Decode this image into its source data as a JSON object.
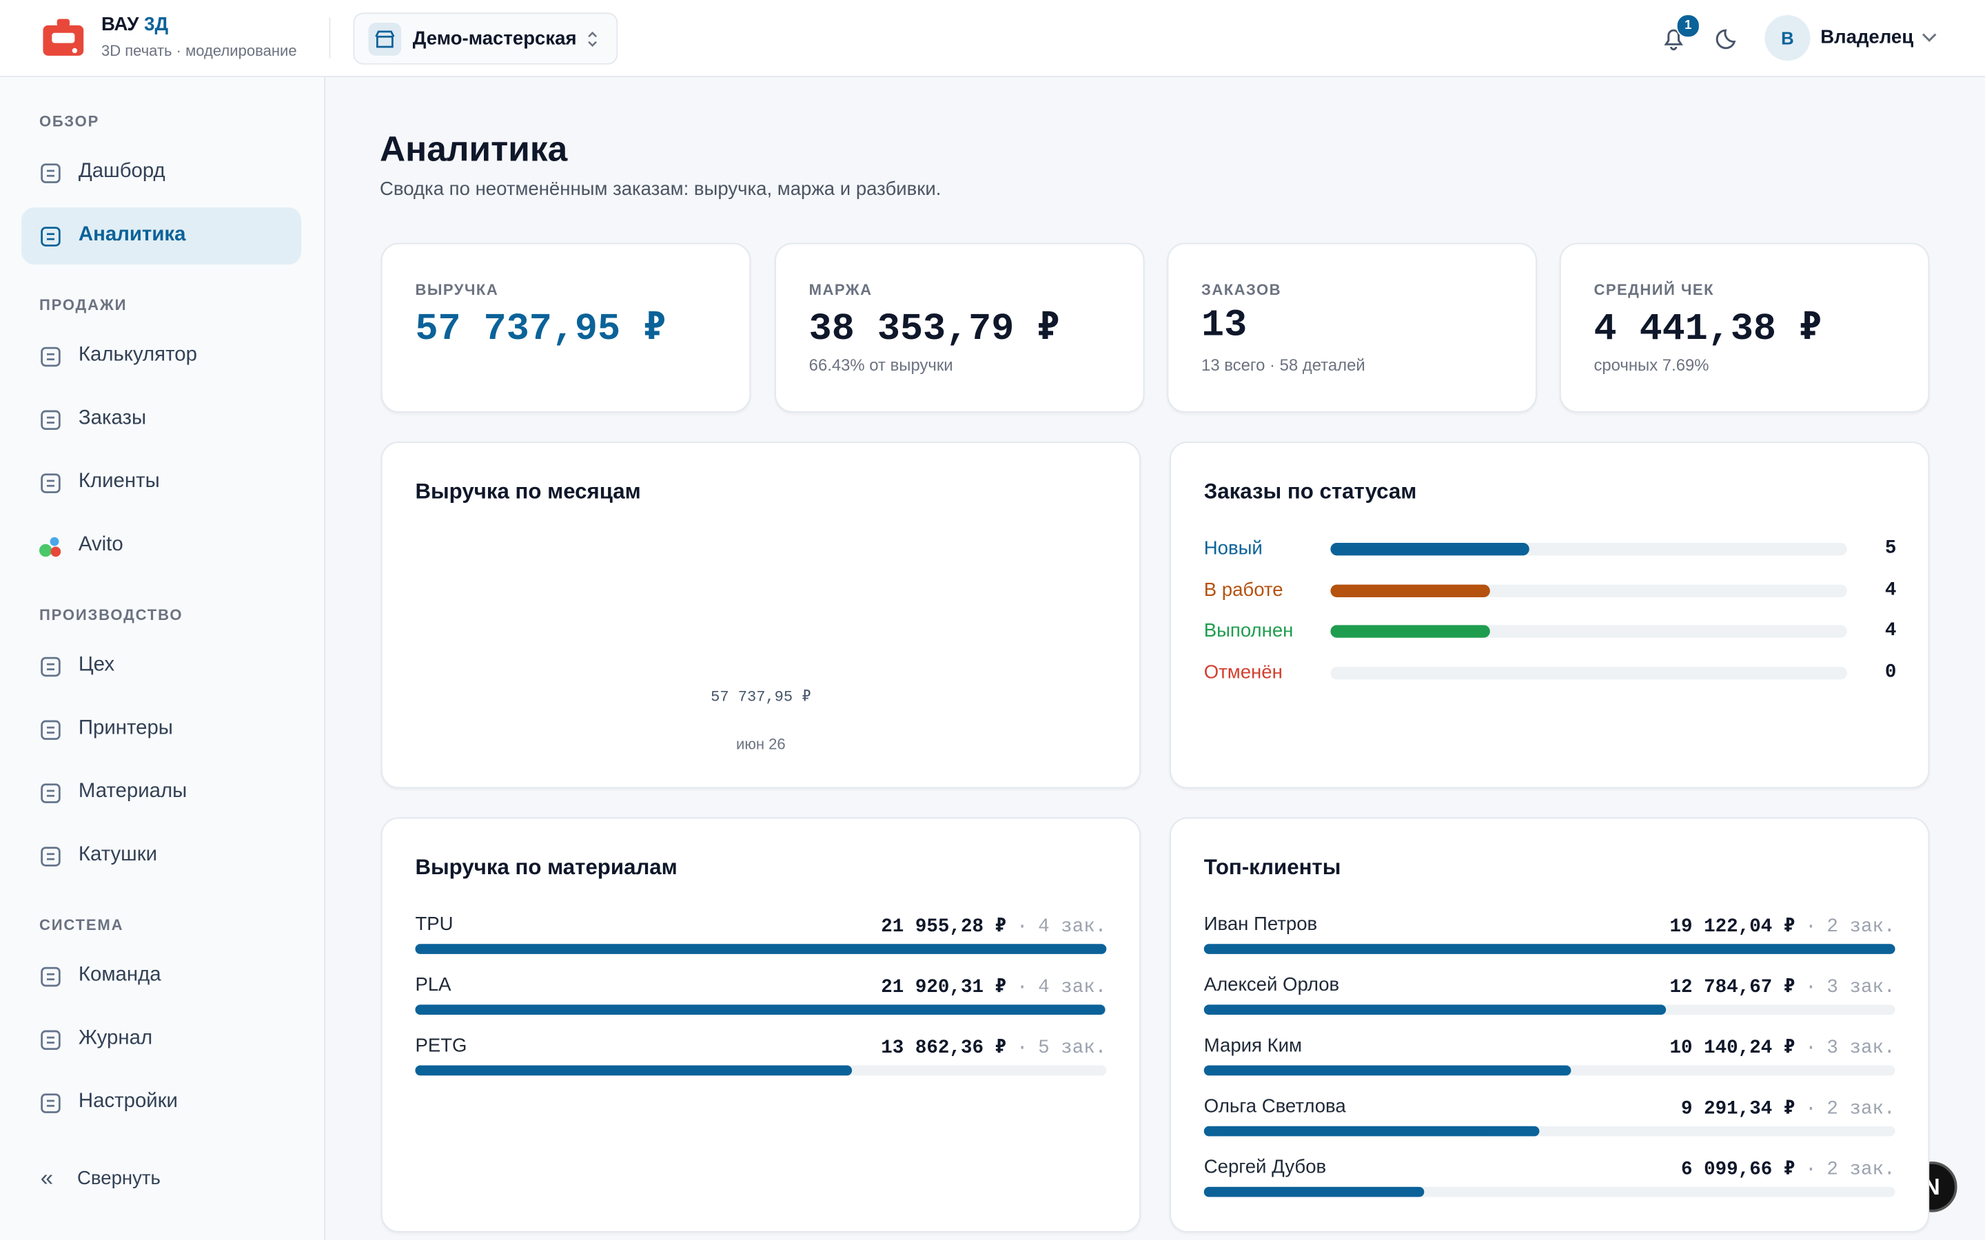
{
  "header": {
    "brand": "ВАУ",
    "brand_accent": "3Д",
    "tagline": "3D печать · моделирование",
    "workspace": "Демо-мастерская",
    "notifications": 1,
    "avatar": "В",
    "user": "Владелец"
  },
  "sidebar": {
    "sections": [
      {
        "title": "ОБЗОР",
        "items": [
          {
            "label": "Дашборд"
          },
          {
            "label": "Аналитика",
            "active": true
          }
        ]
      },
      {
        "title": "ПРОДАЖИ",
        "items": [
          {
            "label": "Калькулятор"
          },
          {
            "label": "Заказы"
          },
          {
            "label": "Клиенты"
          },
          {
            "label": "Avito"
          }
        ]
      },
      {
        "title": "ПРОИЗВОДСТВО",
        "items": [
          {
            "label": "Цех"
          },
          {
            "label": "Принтеры"
          },
          {
            "label": "Материалы"
          },
          {
            "label": "Катушки"
          }
        ]
      },
      {
        "title": "СИСТЕМА",
        "items": [
          {
            "label": "Команда"
          },
          {
            "label": "Журнал"
          },
          {
            "label": "Настройки"
          }
        ]
      }
    ],
    "collapse": "Свернуть"
  },
  "page": {
    "title": "Аналитика",
    "subtitle": "Сводка по неотменённым заказам: выручка, маржа и разбивки."
  },
  "kpis": [
    {
      "label": "ВЫРУЧКА",
      "value": "57 737,95 ₽",
      "accent": true
    },
    {
      "label": "МАРЖА",
      "value": "38 353,79 ₽",
      "note": "66.43% от выручки"
    },
    {
      "label": "ЗАКАЗОВ",
      "value": "13",
      "note": "13 всего · 58 деталей"
    },
    {
      "label": "СРЕДНИЙ ЧЕК",
      "value": "4 441,38 ₽",
      "note": "срочных 7.69%"
    }
  ],
  "monthly": {
    "title": "Выручка по месяцам",
    "categories": [
      "июн 26"
    ],
    "values": [
      57737.95
    ],
    "value_labels": [
      "57 737,95 ₽"
    ]
  },
  "statuses": {
    "title": "Заказы по статусам",
    "categories": [
      "Новый",
      "В работе",
      "Выполнен",
      "Отменён"
    ],
    "values": [
      5,
      4,
      4,
      0
    ],
    "colors": [
      "#0b6299",
      "#b5520f",
      "#1f9d4f",
      "#d2402f"
    ]
  },
  "materials": {
    "title": "Выручка по материалам",
    "categories": [
      "TPU",
      "PLA",
      "PETG"
    ],
    "values": [
      21955.28,
      21920.31,
      13862.36
    ],
    "value_labels": [
      "21 955,28 ₽",
      "21 920,31 ₽",
      "13 862,36 ₽"
    ],
    "orders": [
      "4 зак.",
      "4 зак.",
      "5 зак."
    ],
    "color": "#0b6299"
  },
  "clients": {
    "title": "Топ-клиенты",
    "categories": [
      "Иван Петров",
      "Алексей Орлов",
      "Мария Ким",
      "Ольга Светлова",
      "Сергей Дубов"
    ],
    "values": [
      19122.04,
      12784.67,
      10140.24,
      9291.34,
      6099.66
    ],
    "value_labels": [
      "19 122,04 ₽",
      "12 784,67 ₽",
      "10 140,24 ₽",
      "9 291,34 ₽",
      "6 099,66 ₽"
    ],
    "orders": [
      "2 зак.",
      "3 зак.",
      "3 зак.",
      "2 зак.",
      "2 зак."
    ],
    "color": "#0b6299"
  },
  "separator": "·",
  "dev_indicator": "N"
}
